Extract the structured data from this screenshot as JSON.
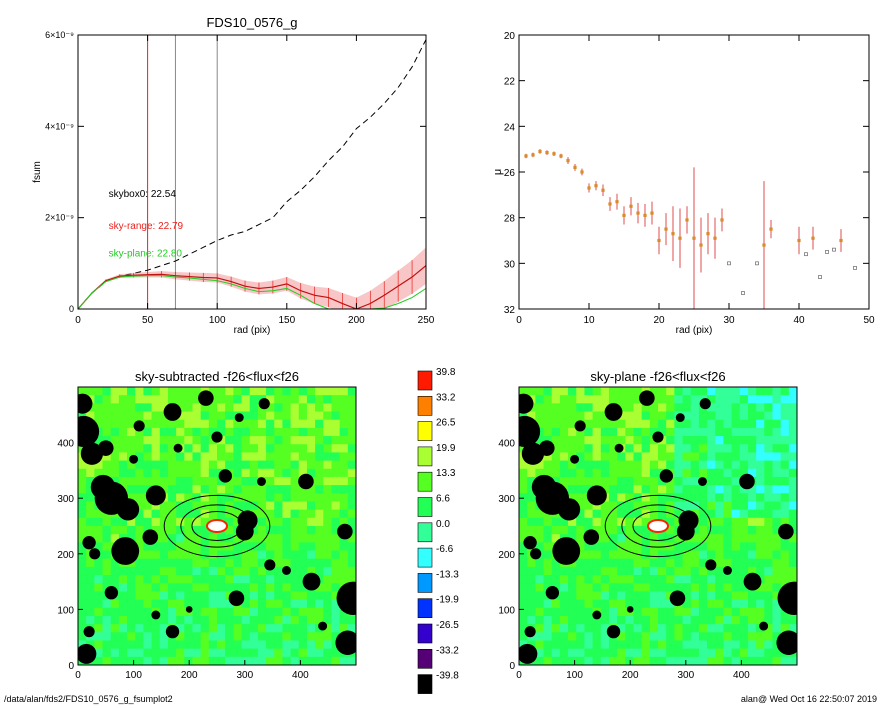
{
  "footer": {
    "path": "/data/alan/fds2/FDS10_0576_g_fsumplot2",
    "user_time": "alan@  Wed Oct 16 22:50:07 2019"
  },
  "colors": {
    "sky_range": "#e8231e",
    "sky_plane": "#22cc22",
    "skybox": "#000000",
    "err_band": "#f08080",
    "guide": "#888888",
    "mu_orange": "#d98a2a",
    "mu_red": "#d62020"
  },
  "chart_data": [
    {
      "type": "line",
      "title": "FDS10_0576_g",
      "xlabel": "rad (pix)",
      "ylabel": "fsum",
      "xlim": [
        0,
        250
      ],
      "ylim": [
        0,
        6e-09
      ],
      "xticks": [
        0,
        50,
        100,
        150,
        200,
        250
      ],
      "yticks": [
        {
          "value": 0,
          "label": "0"
        },
        {
          "value": 2e-09,
          "label": "2×10⁻⁹"
        },
        {
          "value": 4e-09,
          "label": "4×10⁻⁹"
        },
        {
          "value": 6e-09,
          "label": "6×10⁻⁹"
        }
      ],
      "vlines": [
        {
          "x": 50,
          "color": "red"
        },
        {
          "x": 70,
          "color": "gray"
        },
        {
          "x": 100,
          "color": "gray"
        }
      ],
      "annotations": [
        {
          "text": "skybox0: 22.54",
          "color": "black",
          "x": 22,
          "y": 2.45e-09
        },
        {
          "text": "sky-range: 22.79",
          "color": "red",
          "x": 22,
          "y": 1.75e-09
        },
        {
          "text": "sky-plane: 22.80",
          "color": "green",
          "x": 22,
          "y": 1.15e-09
        }
      ],
      "series": [
        {
          "style": "dashed-black",
          "x": [
            0,
            10,
            20,
            30,
            40,
            50,
            60,
            70,
            80,
            90,
            100,
            110,
            120,
            130,
            140,
            150,
            160,
            170,
            180,
            190,
            200,
            210,
            220,
            230,
            240,
            250
          ],
          "y": [
            0,
            3.5e-10,
            6e-10,
            7.2e-10,
            7.8e-10,
            8.5e-10,
            9.5e-10,
            1.05e-09,
            1.2e-09,
            1.35e-09,
            1.5e-09,
            1.62e-09,
            1.7e-09,
            1.85e-09,
            2e-09,
            2.35e-09,
            2.6e-09,
            2.9e-09,
            3.25e-09,
            3.55e-09,
            3.95e-09,
            4.2e-09,
            4.5e-09,
            4.85e-09,
            5.3e-09,
            5.9e-09
          ]
        },
        {
          "style": "red-with-errors",
          "x": [
            0,
            10,
            20,
            30,
            40,
            50,
            60,
            70,
            80,
            90,
            100,
            110,
            120,
            130,
            140,
            150,
            160,
            170,
            180,
            190,
            200,
            210,
            220,
            230,
            240,
            250
          ],
          "y": [
            0,
            3.5e-10,
            6.2e-10,
            7.2e-10,
            7.4e-10,
            7.5e-10,
            7.6e-10,
            7.3e-10,
            7.1e-10,
            6.9e-10,
            6.8e-10,
            6e-10,
            5e-10,
            4.5e-10,
            4.8e-10,
            5.5e-10,
            4e-10,
            3e-10,
            2.5e-10,
            1.2e-10,
            0.0,
            1.2e-10,
            3e-10,
            5e-10,
            7e-10,
            9.5e-10
          ],
          "err": [
            0,
            2e-11,
            3e-11,
            4e-11,
            5e-11,
            6e-11,
            7e-11,
            8e-11,
            9e-11,
            1e-10,
            1e-10,
            1.1e-10,
            1.2e-10,
            1.3e-10,
            1.4e-10,
            1.5e-10,
            1.7e-10,
            1.9e-10,
            2.1e-10,
            2.3e-10,
            2.5e-10,
            2.8e-10,
            3.1e-10,
            3.4e-10,
            3.7e-10,
            4e-10
          ]
        },
        {
          "style": "solid-green",
          "x": [
            0,
            10,
            20,
            30,
            40,
            50,
            60,
            70,
            80,
            90,
            100,
            110,
            120,
            130,
            140,
            150,
            160,
            170,
            180,
            190,
            200,
            210,
            220,
            230,
            240,
            250
          ],
          "y": [
            0,
            3.5e-10,
            6e-10,
            7e-10,
            7.2e-10,
            7.3e-10,
            7.3e-10,
            7e-10,
            6.8e-10,
            6.5e-10,
            6.2e-10,
            5.5e-10,
            4.5e-10,
            3.8e-10,
            4e-10,
            4.5e-10,
            3e-10,
            1.2e-10,
            0.0,
            0.0,
            0.0,
            0.0,
            2e-11,
            1.2e-10,
            2.5e-10,
            4.5e-10
          ]
        }
      ]
    },
    {
      "type": "scatter",
      "xlabel": "rad (pix)",
      "ylabel": "μ",
      "xlim": [
        0,
        50
      ],
      "ylim": [
        32,
        20
      ],
      "xticks": [
        0,
        10,
        20,
        30,
        40,
        50
      ],
      "yticks": [
        20,
        22,
        24,
        26,
        28,
        30,
        32
      ],
      "points": [
        {
          "x": 1,
          "y": 25.3,
          "err": 0.1
        },
        {
          "x": 2,
          "y": 25.25,
          "err": 0.1
        },
        {
          "x": 3,
          "y": 25.1,
          "err": 0.1
        },
        {
          "x": 4,
          "y": 25.15,
          "err": 0.1
        },
        {
          "x": 5,
          "y": 25.2,
          "err": 0.1
        },
        {
          "x": 6,
          "y": 25.3,
          "err": 0.1
        },
        {
          "x": 7,
          "y": 25.5,
          "err": 0.15
        },
        {
          "x": 8,
          "y": 25.8,
          "err": 0.15
        },
        {
          "x": 9,
          "y": 26.0,
          "err": 0.15
        },
        {
          "x": 10,
          "y": 26.7,
          "err": 0.2
        },
        {
          "x": 11,
          "y": 26.6,
          "err": 0.2
        },
        {
          "x": 12,
          "y": 26.8,
          "err": 0.25
        },
        {
          "x": 13,
          "y": 27.4,
          "err": 0.3
        },
        {
          "x": 14,
          "y": 27.3,
          "err": 0.35
        },
        {
          "x": 15,
          "y": 27.9,
          "err": 0.4
        },
        {
          "x": 16,
          "y": 27.5,
          "err": 0.4
        },
        {
          "x": 17,
          "y": 27.8,
          "err": 0.45
        },
        {
          "x": 18,
          "y": 27.9,
          "err": 0.5
        },
        {
          "x": 19,
          "y": 27.8,
          "err": 0.5
        },
        {
          "x": 20,
          "y": 29.0,
          "err": 0.6
        },
        {
          "x": 21,
          "y": 28.5,
          "err": 0.7
        },
        {
          "x": 22,
          "y": 28.7,
          "err": 1.2
        },
        {
          "x": 23,
          "y": 28.9,
          "err": 1.3
        },
        {
          "x": 24,
          "y": 28.1,
          "err": 0.6
        },
        {
          "x": 25,
          "y": 28.9,
          "err": 3.1
        },
        {
          "x": 26,
          "y": 29.2,
          "err": 1.2
        },
        {
          "x": 27,
          "y": 28.7,
          "err": 0.9
        },
        {
          "x": 28,
          "y": 28.9,
          "err": 0.9
        },
        {
          "x": 29,
          "y": 28.1,
          "err": 0.5
        },
        {
          "x": 30,
          "y": 30.0,
          "err": 0.0
        },
        {
          "x": 32,
          "y": 31.3,
          "err": 0.0
        },
        {
          "x": 34,
          "y": 30.0,
          "err": 0.0
        },
        {
          "x": 35,
          "y": 29.2,
          "err": 2.8
        },
        {
          "x": 36,
          "y": 28.5,
          "err": 0.4
        },
        {
          "x": 40,
          "y": 29.0,
          "err": 0.6
        },
        {
          "x": 41,
          "y": 29.6,
          "err": 0.0
        },
        {
          "x": 42,
          "y": 28.9,
          "err": 0.5
        },
        {
          "x": 43,
          "y": 30.6,
          "err": 0.0
        },
        {
          "x": 44,
          "y": 29.5,
          "err": 0.0
        },
        {
          "x": 45,
          "y": 29.4,
          "err": 0.0
        },
        {
          "x": 46,
          "y": 29.0,
          "err": 0.5
        },
        {
          "x": 48,
          "y": 30.2,
          "err": 0.0
        }
      ]
    },
    {
      "type": "heatmap",
      "title": "sky-subtracted -f26<flux<f26",
      "xlim": [
        0,
        500
      ],
      "ylim": [
        0,
        500
      ],
      "xticks": [
        0,
        100,
        200,
        300,
        400
      ],
      "yticks": [
        0,
        100,
        200,
        300,
        400
      ],
      "ellipses": [
        {
          "cx": 250,
          "cy": 250,
          "rx": 95,
          "ry": 55
        },
        {
          "cx": 250,
          "cy": 250,
          "rx": 65,
          "ry": 38
        },
        {
          "cx": 250,
          "cy": 250,
          "rx": 45,
          "ry": 26
        }
      ]
    },
    {
      "type": "heatmap",
      "title": "sky-plane -f26<flux<f26",
      "xlim": [
        0,
        500
      ],
      "ylim": [
        0,
        500
      ],
      "xticks": [
        0,
        100,
        200,
        300,
        400
      ],
      "yticks": [
        0,
        100,
        200,
        300,
        400
      ],
      "ellipses": [
        {
          "cx": 250,
          "cy": 250,
          "rx": 95,
          "ry": 55
        },
        {
          "cx": 250,
          "cy": 250,
          "rx": 65,
          "ry": 38
        },
        {
          "cx": 250,
          "cy": 250,
          "rx": 45,
          "ry": 26
        }
      ]
    }
  ],
  "colorbar": {
    "labels": [
      "39.8",
      "33.2",
      "26.5",
      "19.9",
      "13.3",
      "6.6",
      "0.0",
      "-6.6",
      "-13.3",
      "-19.9",
      "-26.5",
      "-33.2",
      "-39.8"
    ],
    "colors": [
      "#ff1a00",
      "#ff8000",
      "#ffff00",
      "#aaff33",
      "#55ff22",
      "#22ff55",
      "#33ff99",
      "#33ffff",
      "#0099ff",
      "#0033ff",
      "#3300cc",
      "#550077",
      "#000000"
    ]
  }
}
